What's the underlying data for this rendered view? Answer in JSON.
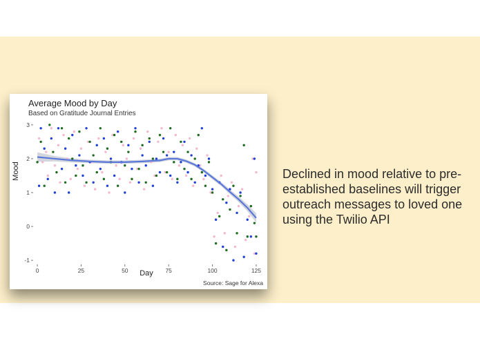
{
  "slide": {
    "description_text": "Declined in mood relative to pre-established baselines will trigger outreach messages to loved one using the Twilio API",
    "background_color": "#fcefc9"
  },
  "chart_data": {
    "type": "scatter",
    "title": "Average Mood by Day",
    "subtitle": "Based on Gratitude Journal Entries",
    "caption": "Source: Sage for Alexa",
    "xlabel": "Day",
    "ylabel": "Mood",
    "xlim": [
      -2,
      127
    ],
    "ylim": [
      -1.1,
      3.1
    ],
    "x_ticks": [
      0,
      25,
      50,
      75,
      100,
      125
    ],
    "y_ticks": [
      -1,
      0,
      1,
      2,
      3
    ],
    "grid": false,
    "legend": "none",
    "colors": {
      "pink": "#f2b8cf",
      "green": "#1f6b1f",
      "blue": "#1f3fd6",
      "trend": "#5a78d9",
      "band": "#c9ccd6"
    },
    "trend": {
      "x": [
        0,
        10,
        20,
        30,
        40,
        50,
        60,
        70,
        75,
        80,
        85,
        90,
        95,
        100,
        105,
        110,
        115,
        120,
        125
      ],
      "y": [
        2.05,
        2.0,
        1.95,
        1.92,
        1.9,
        1.9,
        1.92,
        1.95,
        2.0,
        2.0,
        1.93,
        1.82,
        1.65,
        1.45,
        1.25,
        1.02,
        0.8,
        0.55,
        0.25
      ],
      "band_halfwidth": [
        0.14,
        0.08,
        0.06,
        0.05,
        0.05,
        0.05,
        0.05,
        0.05,
        0.05,
        0.05,
        0.05,
        0.05,
        0.05,
        0.06,
        0.06,
        0.07,
        0.08,
        0.1,
        0.14
      ]
    },
    "series": [
      {
        "color_key": "pink",
        "points": [
          [
            1,
            2.6
          ],
          [
            3,
            1.9
          ],
          [
            5,
            2.2
          ],
          [
            6,
            1.5
          ],
          [
            8,
            2.9
          ],
          [
            10,
            1.8
          ],
          [
            12,
            2.4
          ],
          [
            13,
            1.3
          ],
          [
            15,
            2.7
          ],
          [
            17,
            2.0
          ],
          [
            19,
            1.4
          ],
          [
            21,
            2.8
          ],
          [
            23,
            1.7
          ],
          [
            25,
            2.3
          ],
          [
            27,
            1.2
          ],
          [
            29,
            2.5
          ],
          [
            31,
            1.9
          ],
          [
            33,
            1.1
          ],
          [
            35,
            2.6
          ],
          [
            37,
            1.6
          ],
          [
            39,
            2.2
          ],
          [
            41,
            1.0
          ],
          [
            43,
            2.7
          ],
          [
            45,
            1.8
          ],
          [
            47,
            1.4
          ],
          [
            49,
            2.4
          ],
          [
            51,
            2.0
          ],
          [
            53,
            1.3
          ],
          [
            55,
            2.6
          ],
          [
            57,
            1.7
          ],
          [
            59,
            2.3
          ],
          [
            61,
            1.1
          ],
          [
            63,
            2.8
          ],
          [
            65,
            1.9
          ],
          [
            67,
            1.5
          ],
          [
            69,
            2.5
          ],
          [
            71,
            2.9
          ],
          [
            73,
            1.6
          ],
          [
            75,
            2.2
          ],
          [
            77,
            1.4
          ],
          [
            79,
            2.7
          ],
          [
            81,
            1.8
          ],
          [
            83,
            2.4
          ],
          [
            85,
            1.5
          ],
          [
            87,
            2.6
          ],
          [
            89,
            1.2
          ],
          [
            91,
            2.3
          ],
          [
            93,
            1.8
          ],
          [
            95,
            1.4
          ],
          [
            97,
            2.1
          ],
          [
            99,
            1.0
          ],
          [
            101,
            -0.3
          ],
          [
            103,
            0.4
          ],
          [
            105,
            1.5
          ],
          [
            107,
            -0.2
          ],
          [
            109,
            0.9
          ],
          [
            111,
            1.3
          ],
          [
            113,
            -0.6
          ],
          [
            115,
            0.6
          ],
          [
            117,
            1.1
          ],
          [
            119,
            -0.4
          ],
          [
            121,
            0.3
          ],
          [
            123,
            2.0
          ],
          [
            124,
            -0.8
          ],
          [
            125,
            1.6
          ]
        ]
      },
      {
        "color_key": "green",
        "points": [
          [
            0,
            1.9
          ],
          [
            2,
            2.5
          ],
          [
            4,
            1.2
          ],
          [
            7,
            3.0
          ],
          [
            9,
            2.2
          ],
          [
            11,
            1.6
          ],
          [
            14,
            2.9
          ],
          [
            16,
            1.3
          ],
          [
            18,
            2.6
          ],
          [
            20,
            2.0
          ],
          [
            22,
            1.5
          ],
          [
            24,
            2.8
          ],
          [
            26,
            1.8
          ],
          [
            28,
            1.3
          ],
          [
            30,
            2.5
          ],
          [
            32,
            2.1
          ],
          [
            34,
            1.6
          ],
          [
            36,
            2.9
          ],
          [
            38,
            1.4
          ],
          [
            40,
            2.3
          ],
          [
            42,
            1.9
          ],
          [
            44,
            2.7
          ],
          [
            46,
            1.2
          ],
          [
            48,
            2.5
          ],
          [
            50,
            1.8
          ],
          [
            52,
            2.2
          ],
          [
            54,
            1.4
          ],
          [
            56,
            2.8
          ],
          [
            58,
            1.7
          ],
          [
            60,
            2.4
          ],
          [
            62,
            1.3
          ],
          [
            64,
            2.6
          ],
          [
            66,
            2.0
          ],
          [
            68,
            1.5
          ],
          [
            70,
            2.7
          ],
          [
            72,
            2.2
          ],
          [
            74,
            1.6
          ],
          [
            76,
            2.9
          ],
          [
            78,
            1.9
          ],
          [
            80,
            1.4
          ],
          [
            82,
            2.5
          ],
          [
            84,
            1.7
          ],
          [
            86,
            2.2
          ],
          [
            88,
            1.4
          ],
          [
            90,
            2.0
          ],
          [
            92,
            2.7
          ],
          [
            94,
            1.6
          ],
          [
            96,
            1.2
          ],
          [
            98,
            1.9
          ],
          [
            100,
            1.0
          ],
          [
            102,
            -0.5
          ],
          [
            104,
            0.3
          ],
          [
            106,
            0.8
          ],
          [
            108,
            -0.7
          ],
          [
            110,
            0.5
          ],
          [
            112,
            1.2
          ],
          [
            114,
            -0.2
          ],
          [
            116,
            0.9
          ],
          [
            118,
            2.4
          ],
          [
            120,
            -0.3
          ],
          [
            122,
            0.6
          ],
          [
            124,
            0.1
          ],
          [
            125,
            -0.3
          ]
        ]
      },
      {
        "color_key": "blue",
        "points": [
          [
            1,
            1.2
          ],
          [
            2,
            2.9
          ],
          [
            4,
            2.3
          ],
          [
            6,
            1.4
          ],
          [
            8,
            2.6
          ],
          [
            10,
            1.0
          ],
          [
            12,
            2.9
          ],
          [
            14,
            1.7
          ],
          [
            16,
            2.3
          ],
          [
            18,
            1.0
          ],
          [
            20,
            2.7
          ],
          [
            22,
            1.8
          ],
          [
            24,
            2.1
          ],
          [
            26,
            1.5
          ],
          [
            28,
            2.9
          ],
          [
            30,
            1.9
          ],
          [
            32,
            1.3
          ],
          [
            34,
            2.4
          ],
          [
            36,
            1.7
          ],
          [
            38,
            2.6
          ],
          [
            40,
            1.2
          ],
          [
            42,
            2.0
          ],
          [
            44,
            1.5
          ],
          [
            46,
            2.8
          ],
          [
            48,
            1.9
          ],
          [
            50,
            1.0
          ],
          [
            52,
            2.4
          ],
          [
            54,
            1.7
          ],
          [
            56,
            2.9
          ],
          [
            58,
            1.3
          ],
          [
            60,
            2.1
          ],
          [
            62,
            1.8
          ],
          [
            64,
            2.5
          ],
          [
            66,
            1.2
          ],
          [
            68,
            2.0
          ],
          [
            70,
            1.6
          ],
          [
            72,
            2.6
          ],
          [
            74,
            2.1
          ],
          [
            76,
            1.5
          ],
          [
            78,
            2.2
          ],
          [
            80,
            1.3
          ],
          [
            82,
            1.9
          ],
          [
            84,
            2.5
          ],
          [
            86,
            1.6
          ],
          [
            88,
            2.1
          ],
          [
            90,
            1.3
          ],
          [
            92,
            1.8
          ],
          [
            94,
            2.9
          ],
          [
            96,
            1.5
          ],
          [
            98,
            2.0
          ],
          [
            100,
            1.1
          ],
          [
            102,
            0.2
          ],
          [
            104,
            1.3
          ],
          [
            106,
            -0.6
          ],
          [
            108,
            0.7
          ],
          [
            110,
            1.1
          ],
          [
            112,
            -1.0
          ],
          [
            114,
            0.4
          ],
          [
            116,
            1.0
          ],
          [
            118,
            -0.9
          ],
          [
            120,
            0.2
          ],
          [
            122,
            -0.3
          ],
          [
            124,
            2.0
          ],
          [
            125,
            -0.8
          ]
        ]
      }
    ]
  }
}
